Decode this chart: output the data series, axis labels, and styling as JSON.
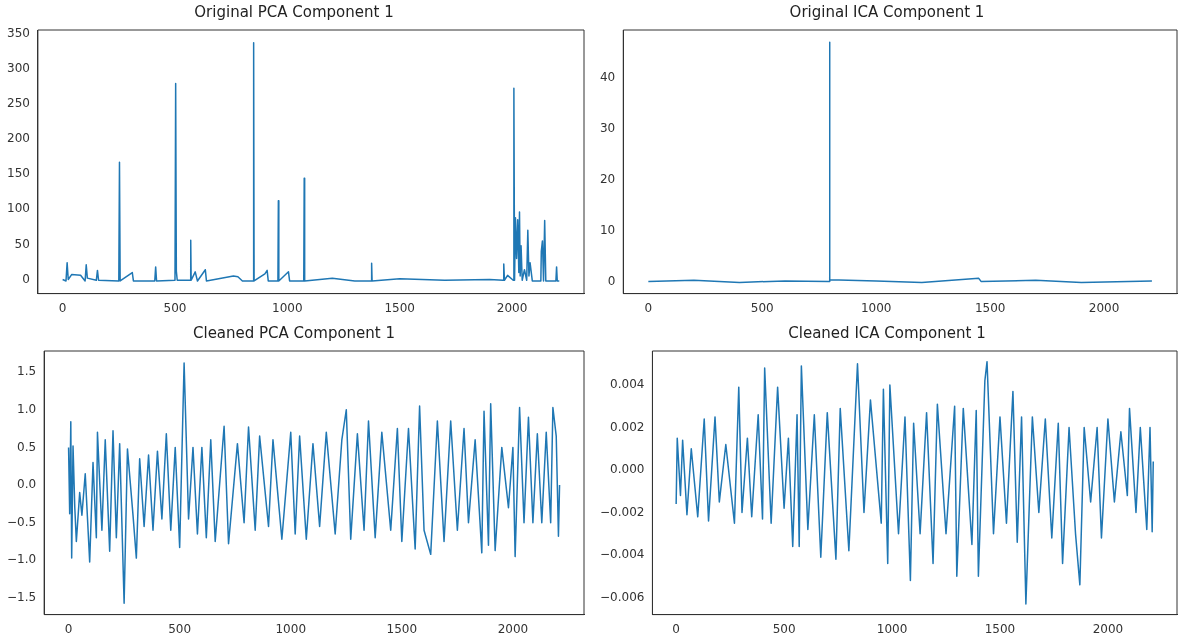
{
  "chart_data": [
    {
      "type": "line",
      "title": "Original PCA Component 1",
      "xlim": [
        -110,
        2320
      ],
      "xticks": [
        0,
        500,
        1000,
        1500,
        2000
      ],
      "ylim": [
        -20,
        355
      ],
      "yticks": [
        0,
        50,
        100,
        150,
        200,
        250,
        300,
        350
      ],
      "series": [
        {
          "color": "#1f77b4",
          "x": [
            0,
            15,
            20,
            25,
            40,
            80,
            100,
            105,
            110,
            150,
            155,
            160,
            250,
            253,
            256,
            310,
            315,
            410,
            414,
            418,
            500,
            503,
            506,
            510,
            568,
            570,
            572,
            590,
            600,
            635,
            640,
            760,
            780,
            800,
            848,
            850,
            852,
            900,
            910,
            915,
            958,
            960,
            962,
            1005,
            1010,
            1073,
            1075,
            1077,
            1200,
            1300,
            1373,
            1375,
            1377,
            1500,
            1700,
            1900,
            1960,
            1963,
            1966,
            1980,
            2005,
            2008,
            2011,
            2015,
            2020,
            2025,
            2030,
            2033,
            2036,
            2040,
            2045,
            2055,
            2065,
            2070,
            2075,
            2080,
            2090,
            2128,
            2130,
            2135,
            2140,
            2145,
            2150,
            2195,
            2198,
            2201,
            2210
          ],
          "values": [
            0,
            -2,
            24,
            0,
            7,
            6,
            -2,
            21,
            2,
            -1,
            13,
            -1,
            -2,
            167,
            -2,
            10,
            -2,
            -2,
            18,
            -2,
            -1,
            279,
            12,
            -1,
            -1,
            56,
            -1,
            11,
            -2,
            14,
            -2,
            5,
            4,
            -2,
            -2,
            337,
            -2,
            8,
            13,
            -2,
            -2,
            112,
            -2,
            11,
            -2,
            -2,
            144,
            -2,
            2,
            -2,
            -2,
            23,
            -2,
            1,
            -1,
            0,
            -1,
            22,
            -1,
            6,
            -1,
            272,
            -1,
            88,
            30,
            85,
            10,
            96,
            5,
            48,
            -1,
            14,
            -1,
            70,
            5,
            24,
            -2,
            -2,
            40,
            55,
            -2,
            84,
            -2,
            -2,
            18,
            -2,
            -2
          ]
        }
      ]
    },
    {
      "type": "line",
      "title": "Original ICA Component 1",
      "xlim": [
        -110,
        2320
      ],
      "xticks": [
        0,
        500,
        1000,
        1500,
        2000
      ],
      "ylim": [
        -2.4,
        49.4
      ],
      "yticks": [
        0,
        10,
        20,
        30,
        40
      ],
      "series": [
        {
          "color": "#1f77b4",
          "x": [
            0,
            200,
            400,
            600,
            793,
            795,
            797,
            1000,
            1200,
            1450,
            1460,
            1700,
            1900,
            2210
          ],
          "values": [
            0,
            0.2,
            -0.2,
            0.1,
            0,
            47,
            0.3,
            0.1,
            -0.2,
            0.6,
            0,
            0.2,
            -0.2,
            0.1
          ]
        }
      ]
    },
    {
      "type": "line",
      "title": "Cleaned PCA Component 1",
      "xlim": [
        -110,
        2320
      ],
      "xticks": [
        0,
        500,
        1000,
        1500,
        2000
      ],
      "ylim": [
        -1.72,
        1.78
      ],
      "yticks": [
        {
          "value": -1.5,
          "label": "−1.5"
        },
        {
          "value": -1,
          "label": "−1.0"
        },
        {
          "value": -0.5,
          "label": "−0.5"
        },
        {
          "value": 0,
          "label": "0.0"
        },
        {
          "value": 0.5,
          "label": "0.5"
        },
        {
          "value": 1,
          "label": "1.0"
        },
        {
          "value": 1.5,
          "label": "1.5"
        }
      ],
      "series": [
        {
          "color": "#1f77b4",
          "x": [
            0,
            5,
            10,
            14,
            20,
            28,
            35,
            50,
            60,
            75,
            95,
            110,
            125,
            130,
            150,
            165,
            185,
            200,
            215,
            230,
            250,
            265,
            290,
            305,
            320,
            340,
            360,
            380,
            400,
            420,
            440,
            460,
            480,
            500,
            520,
            540,
            560,
            580,
            600,
            620,
            640,
            660,
            700,
            720,
            760,
            790,
            810,
            840,
            860,
            900,
            920,
            960,
            1000,
            1020,
            1040,
            1070,
            1100,
            1130,
            1160,
            1200,
            1230,
            1250,
            1270,
            1300,
            1330,
            1350,
            1380,
            1410,
            1450,
            1480,
            1500,
            1530,
            1560,
            1580,
            1600,
            1630,
            1660,
            1690,
            1720,
            1750,
            1780,
            1800,
            1830,
            1860,
            1870,
            1890,
            1900,
            1920,
            1950,
            1980,
            2000,
            2010,
            2030,
            2050,
            2070,
            2090,
            2110,
            2130,
            2150,
            2170,
            2180,
            2195,
            2205,
            2210
          ],
          "values": [
            0.5,
            -0.38,
            0.84,
            -0.97,
            0.52,
            -0.3,
            -0.75,
            -0.1,
            -0.4,
            0.15,
            -1.02,
            0.3,
            -0.7,
            0.7,
            -0.6,
            0.6,
            -0.88,
            0.72,
            -0.7,
            0.55,
            -1.57,
            0.48,
            -0.4,
            -0.97,
            0.35,
            -0.55,
            0.4,
            -0.6,
            0.45,
            -0.45,
            0.68,
            -0.6,
            0.5,
            -0.83,
            1.62,
            -0.45,
            0.5,
            -0.65,
            0.5,
            -0.7,
            0.6,
            -0.75,
            0.78,
            -0.78,
            0.55,
            -0.5,
            0.77,
            -0.6,
            0.65,
            -0.55,
            0.6,
            -0.72,
            0.7,
            -0.65,
            0.65,
            -0.72,
            0.55,
            -0.55,
            0.7,
            -0.65,
            0.6,
            1.0,
            -0.72,
            0.68,
            -0.6,
            0.85,
            -0.7,
            0.7,
            -0.6,
            0.75,
            -0.75,
            0.75,
            -0.85,
            1.05,
            -0.6,
            -0.92,
            0.85,
            -0.75,
            0.85,
            -0.6,
            0.75,
            -0.5,
            0.6,
            -0.9,
            0.98,
            -0.8,
            1.08,
            -0.87,
            0.5,
            -0.3,
            0.5,
            -0.95,
            1.03,
            -0.5,
            0.9,
            -0.5,
            0.68,
            -0.5,
            0.7,
            -0.5,
            1.03,
            0.65,
            -0.68,
            0.0
          ]
        }
      ]
    },
    {
      "type": "line",
      "title": "Cleaned ICA Component 1",
      "xlim": [
        -110,
        2320
      ],
      "xticks": [
        0,
        500,
        1000,
        1500,
        2000
      ],
      "ylim": [
        -0.0068,
        0.0056
      ],
      "yticks": [
        {
          "value": -0.006,
          "label": "−0.006"
        },
        {
          "value": -0.004,
          "label": "−0.004"
        },
        {
          "value": -0.002,
          "label": "−0.002"
        },
        {
          "value": 0,
          "label": "0.000"
        },
        {
          "value": 0.002,
          "label": "0.002"
        },
        {
          "value": 0.004,
          "label": "0.004"
        }
      ],
      "series": [
        {
          "color": "#1f77b4",
          "x": [
            0,
            5,
            20,
            30,
            50,
            70,
            100,
            130,
            150,
            180,
            200,
            230,
            270,
            290,
            305,
            330,
            350,
            380,
            400,
            410,
            440,
            470,
            500,
            520,
            540,
            560,
            570,
            580,
            610,
            640,
            670,
            700,
            740,
            760,
            800,
            840,
            870,
            900,
            950,
            960,
            980,
            990,
            1030,
            1060,
            1085,
            1100,
            1130,
            1160,
            1190,
            1210,
            1250,
            1290,
            1300,
            1330,
            1370,
            1390,
            1400,
            1430,
            1440,
            1470,
            1500,
            1530,
            1560,
            1580,
            1600,
            1620,
            1650,
            1680,
            1710,
            1740,
            1770,
            1790,
            1820,
            1850,
            1870,
            1890,
            1920,
            1950,
            1970,
            2000,
            2030,
            2060,
            2090,
            2100,
            2130,
            2150,
            2180,
            2195,
            2205,
            2210
          ],
          "values": [
            -0.0016,
            0.0015,
            -0.0012,
            0.0014,
            -0.0021,
            0.001,
            -0.0022,
            0.0024,
            -0.0024,
            0.0025,
            -0.0015,
            0.0012,
            -0.0025,
            0.0039,
            -0.002,
            0.0015,
            -0.0022,
            0.0026,
            -0.0023,
            0.0048,
            -0.0025,
            0.0039,
            -0.0018,
            0.0015,
            -0.0036,
            0.0026,
            -0.0036,
            0.0049,
            -0.0028,
            0.0026,
            -0.0041,
            0.0027,
            -0.0042,
            0.0029,
            -0.0038,
            0.005,
            -0.002,
            0.0033,
            -0.0025,
            0.0038,
            -0.0044,
            0.004,
            -0.003,
            0.0025,
            -0.0052,
            0.0022,
            -0.003,
            0.0027,
            -0.0044,
            0.0031,
            -0.003,
            0.003,
            -0.005,
            0.0029,
            -0.0035,
            0.0028,
            -0.005,
            0.0042,
            0.0051,
            -0.003,
            0.0025,
            -0.0025,
            0.0037,
            -0.0034,
            0.0025,
            -0.0063,
            0.0025,
            -0.002,
            0.0024,
            -0.0032,
            0.0022,
            -0.0044,
            0.002,
            -0.003,
            -0.0054,
            0.002,
            -0.0015,
            0.002,
            -0.0032,
            0.0024,
            -0.0015,
            0.0018,
            -0.0012,
            0.0029,
            -0.002,
            0.002,
            -0.0028,
            0.002,
            -0.0029,
            0.0004
          ]
        }
      ]
    }
  ]
}
